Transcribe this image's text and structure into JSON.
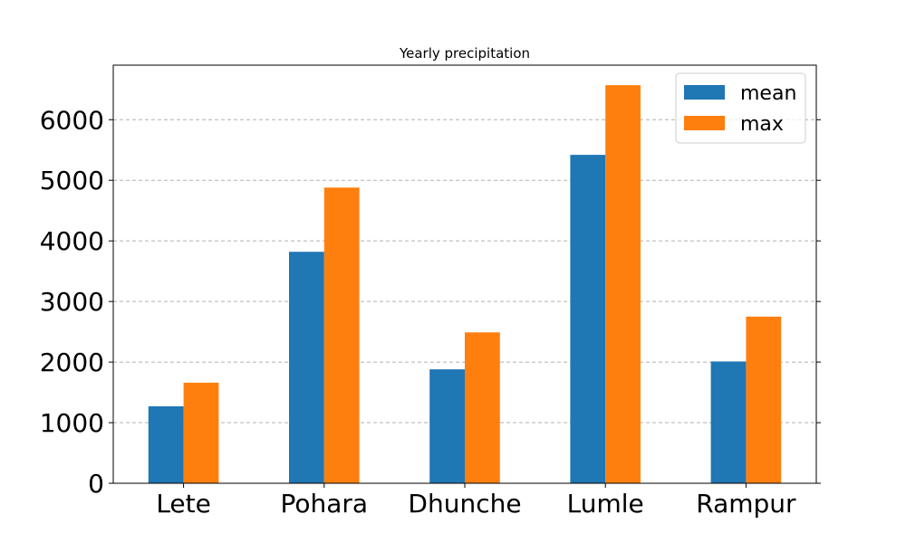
{
  "chart_data": {
    "type": "bar",
    "title": "Yearly precipitation",
    "xlabel": "",
    "ylabel": "",
    "categories": [
      "Lete",
      "Pohara",
      "Dhunche",
      "Lumle",
      "Rampur"
    ],
    "series": [
      {
        "name": "mean",
        "color": "#1f77b4",
        "values": [
          1270,
          3820,
          1880,
          5420,
          2010
        ]
      },
      {
        "name": "max",
        "color": "#ff7f0e",
        "values": [
          1660,
          4880,
          2490,
          6570,
          2750
        ]
      }
    ],
    "ylim": [
      0,
      6900
    ],
    "yticks": [
      "0",
      "1000",
      "2000",
      "3000",
      "4000",
      "5000",
      "6000"
    ],
    "grid": "y-dashed",
    "legend_position": "top-right"
  }
}
